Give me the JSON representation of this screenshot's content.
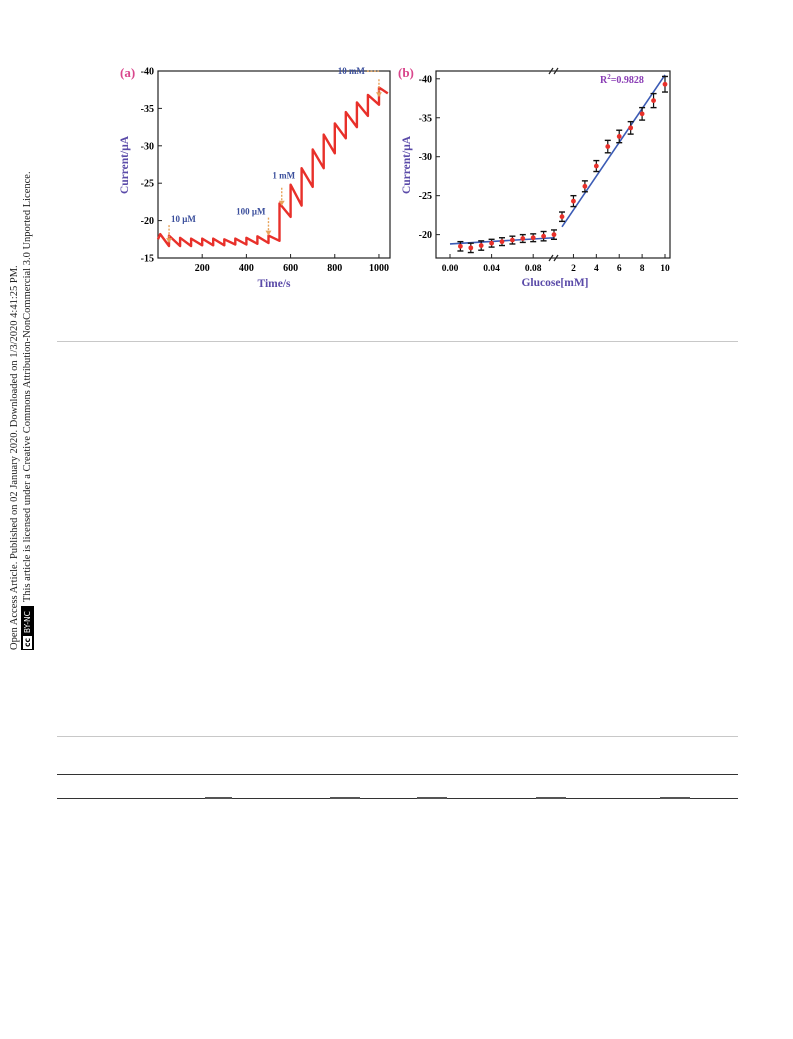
{
  "side_note": {
    "line1": "Open Access Article. Published on 02 January 2020. Downloaded on 1/3/2020 4:41:25 PM.",
    "line2": "This article is licensed under a Creative Commons Attribution-NonCommercial 3.0 Unported Licence.",
    "badge_cc": "cc",
    "badge_text": "BY-NC"
  },
  "colors": {
    "panel_label": "#d9468c",
    "trace": "#e8302a",
    "fit_line": "#3b5bb5",
    "annotation_text": "#3b4f9c",
    "arrow": "#e8a35a",
    "axis_title": "#5a4aa8",
    "r2": "#8a3db5",
    "rule_light": "#c8c8c8",
    "rule_dark": "#333333"
  },
  "chart_data": [
    {
      "type": "line",
      "panel_label": "(a)",
      "xlabel": "Time/s",
      "ylabel": "Current/μA",
      "xlim": [
        0,
        1050
      ],
      "ylim": [
        -15,
        -40
      ],
      "x_ticks": [
        "200",
        "400",
        "600",
        "800",
        "1000"
      ],
      "y_ticks": [
        "-40",
        "-35",
        "-30",
        "-25",
        "-20",
        "-15"
      ],
      "x": [
        0,
        10,
        50,
        50,
        100,
        100,
        150,
        150,
        200,
        200,
        250,
        250,
        300,
        300,
        350,
        350,
        400,
        400,
        450,
        450,
        500,
        500,
        550,
        550,
        600,
        600,
        650,
        650,
        700,
        700,
        750,
        750,
        800,
        800,
        850,
        850,
        900,
        900,
        950,
        950,
        1000,
        1000,
        1040
      ],
      "y": [
        -17.5,
        -18.2,
        -16.6,
        -18.0,
        -16.6,
        -17.7,
        -16.6,
        -17.6,
        -16.7,
        -17.6,
        -16.7,
        -17.6,
        -16.7,
        -17.5,
        -16.8,
        -17.6,
        -16.8,
        -17.7,
        -16.9,
        -17.9,
        -17.0,
        -18.0,
        -17.3,
        -22.3,
        -20.5,
        -24.8,
        -22.0,
        -27.0,
        -24.5,
        -29.5,
        -27.0,
        -31.5,
        -29.0,
        -33.0,
        -31.0,
        -34.5,
        -32.5,
        -35.8,
        -34.0,
        -36.8,
        -35.5,
        -37.8,
        -37.0
      ],
      "annotations": [
        {
          "text": "10 μM",
          "x": 50,
          "y": -19.8
        },
        {
          "text": "100 μM",
          "x": 500,
          "y": -20.8
        },
        {
          "text": "1 mM",
          "x": 560,
          "y": -24.8
        },
        {
          "text": "10 mM",
          "x": 1000,
          "y": -39.3
        }
      ]
    },
    {
      "type": "scatter",
      "panel_label": "(b)",
      "xlabel": "Glucose[mM]",
      "ylabel": "Current/μA",
      "ylim": [
        -17,
        -41
      ],
      "x_ticks_low": [
        "0.00",
        "0.04",
        "0.08"
      ],
      "x_ticks_high": [
        "2",
        "4",
        "6",
        "8",
        "10"
      ],
      "y_ticks": [
        "-40",
        "-35",
        "-30",
        "-25",
        "-20"
      ],
      "r2_label": "R",
      "r2_exp": "2",
      "r2_value": "=0.9828",
      "series_low": {
        "x": [
          0.01,
          0.02,
          0.03,
          0.04,
          0.05,
          0.06,
          0.07,
          0.08,
          0.09,
          0.1
        ],
        "y": [
          -18.5,
          -18.3,
          -18.6,
          -18.9,
          -19.1,
          -19.3,
          -19.5,
          -19.6,
          -19.8,
          -20.0
        ],
        "err": [
          0.6,
          0.6,
          0.6,
          0.5,
          0.5,
          0.5,
          0.5,
          0.5,
          0.6,
          0.6
        ]
      },
      "series_high": {
        "x": [
          1,
          2,
          3,
          4,
          5,
          6,
          7,
          8,
          9,
          10
        ],
        "y": [
          -22.3,
          -24.3,
          -26.2,
          -28.8,
          -31.3,
          -32.6,
          -33.7,
          -35.5,
          -37.2,
          -39.3
        ],
        "err": [
          0.6,
          0.7,
          0.7,
          0.7,
          0.8,
          0.8,
          0.8,
          0.8,
          0.9,
          1.0
        ]
      },
      "fit_low": {
        "x": [
          0.0,
          0.1
        ],
        "y": [
          -18.8,
          -19.6
        ]
      },
      "fit_high": {
        "x": [
          1,
          10
        ],
        "y": [
          -21.0,
          -40.5
        ]
      }
    }
  ]
}
